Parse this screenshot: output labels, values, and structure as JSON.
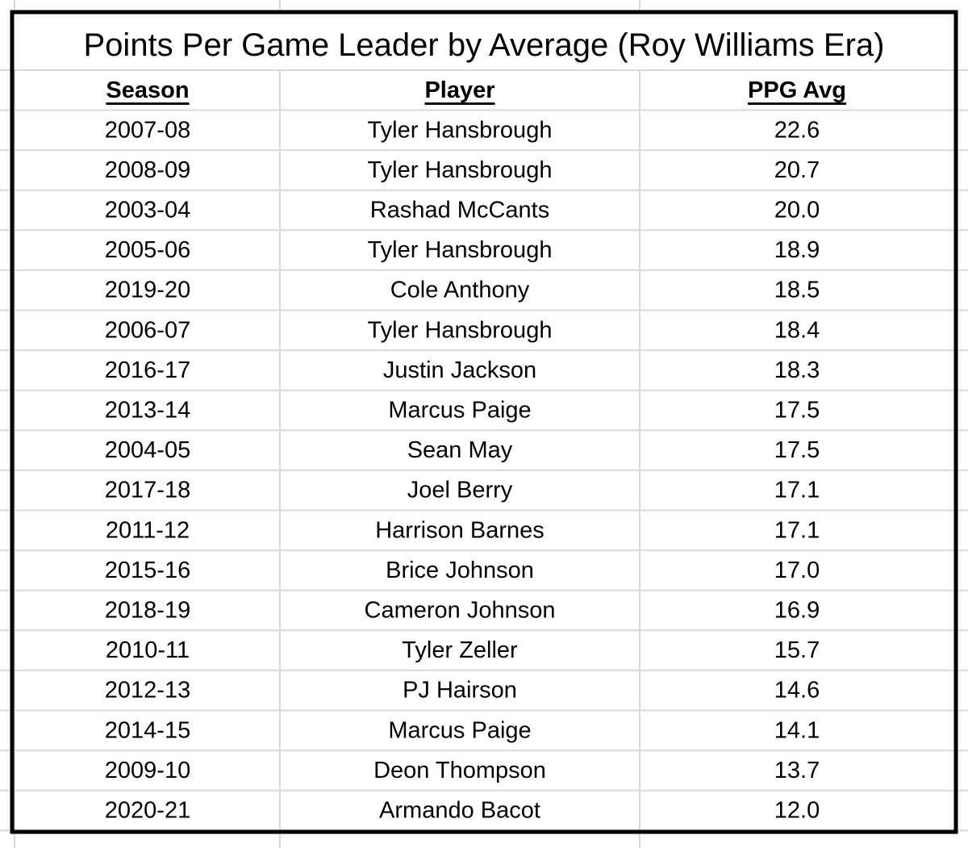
{
  "title": "Points Per Game Leader by Average (Roy Williams Era)",
  "table": {
    "columns": [
      "Season",
      "Player",
      "PPG Avg"
    ],
    "rows": [
      [
        "2007-08",
        "Tyler Hansbrough",
        "22.6"
      ],
      [
        "2008-09",
        "Tyler Hansbrough",
        "20.7"
      ],
      [
        "2003-04",
        "Rashad McCants",
        "20.0"
      ],
      [
        "2005-06",
        "Tyler Hansbrough",
        "18.9"
      ],
      [
        "2019-20",
        "Cole Anthony",
        "18.5"
      ],
      [
        "2006-07",
        "Tyler Hansbrough",
        "18.4"
      ],
      [
        "2016-17",
        "Justin Jackson",
        "18.3"
      ],
      [
        "2013-14",
        "Marcus Paige",
        "17.5"
      ],
      [
        "2004-05",
        "Sean May",
        "17.5"
      ],
      [
        "2017-18",
        "Joel Berry",
        "17.1"
      ],
      [
        "2011-12",
        "Harrison Barnes",
        "17.1"
      ],
      [
        "2015-16",
        "Brice Johnson",
        "17.0"
      ],
      [
        "2018-19",
        "Cameron Johnson",
        "16.9"
      ],
      [
        "2010-11",
        "Tyler Zeller",
        "15.7"
      ],
      [
        "2012-13",
        "PJ Hairson",
        "14.6"
      ],
      [
        "2014-15",
        "Marcus Paige",
        "14.1"
      ],
      [
        "2009-10",
        "Deon Thompson",
        "13.7"
      ],
      [
        "2020-21",
        "Armando Bacot",
        "12.0"
      ]
    ]
  }
}
